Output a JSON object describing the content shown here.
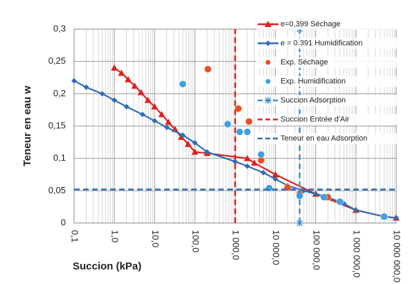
{
  "chart_data": {
    "type": "line",
    "x_label": "Succion (kPa)",
    "y_label": "Teneur en eau w",
    "xscale": "log",
    "grid": true,
    "xlim": [
      0.1,
      10000000
    ],
    "xticks": [
      {
        "value": 0.1,
        "label": "0,1"
      },
      {
        "value": 1,
        "label": "1,0"
      },
      {
        "value": 10,
        "label": "10,0"
      },
      {
        "value": 100,
        "label": "100,0"
      },
      {
        "value": 1000,
        "label": "1 000,0"
      },
      {
        "value": 10000,
        "label": "10 000,0"
      },
      {
        "value": 100000,
        "label": "100 000,0"
      },
      {
        "value": 1000000,
        "label": "1 000 000,0"
      },
      {
        "value": 10000000,
        "label": "10 000 000,0"
      }
    ],
    "ylim": [
      0,
      0.3
    ],
    "yticks": [
      0,
      {
        "value": 0.05,
        "label": "0,05"
      },
      {
        "value": 0.1,
        "label": "0,1"
      },
      {
        "value": 0.15,
        "label": "0,15"
      },
      {
        "value": 0.2,
        "label": "0,2"
      },
      {
        "value": 0.25,
        "label": "0,25"
      },
      {
        "value": 0.3,
        "label": "0,3"
      }
    ],
    "legend": "top-right",
    "series": [
      {
        "name": "e=0,399 Séchage",
        "color": "#e02020",
        "marker": "triangle",
        "line": "solid",
        "x": [
          1,
          1.5,
          2.2,
          3.2,
          4.6,
          6.8,
          10,
          15,
          22,
          32,
          46,
          68,
          100,
          200,
          2000,
          3000,
          10000,
          100000,
          1000000,
          5000000,
          10000000
        ],
        "values": [
          0.24,
          0.232,
          0.222,
          0.212,
          0.202,
          0.19,
          0.18,
          0.168,
          0.156,
          0.145,
          0.133,
          0.122,
          0.11,
          0.108,
          0.1,
          0.093,
          0.075,
          0.045,
          0.02,
          0.01,
          0.008
        ]
      },
      {
        "name": "e = 0.391 Humidification",
        "color": "#2e6db4",
        "marker": "diamond",
        "line": "solid",
        "x": [
          0.1,
          0.2,
          0.5,
          1,
          2,
          5,
          10,
          20,
          50,
          100,
          200,
          1000,
          2000,
          5000,
          10000,
          20000,
          50000,
          100000,
          200000,
          500000,
          1000000,
          5000000,
          10000000
        ],
        "values": [
          0.22,
          0.21,
          0.2,
          0.19,
          0.18,
          0.168,
          0.158,
          0.148,
          0.136,
          0.124,
          0.11,
          0.095,
          0.088,
          0.078,
          0.068,
          0.058,
          0.05,
          0.045,
          0.04,
          0.03,
          0.02,
          0.01,
          0.008
        ]
      },
      {
        "name": "Exp. Séchage",
        "color": "#e8501e",
        "marker": "circle",
        "line": "none",
        "x": [
          210,
          1200,
          2200,
          4400,
          20000,
          40000,
          200000,
          5000000
        ],
        "values": [
          0.238,
          0.177,
          0.157,
          0.097,
          0.055,
          0.045,
          0.04,
          0.01
        ]
      },
      {
        "name": "Exp. Humidification",
        "color": "#3fa0e0",
        "marker": "circle",
        "line": "none",
        "x": [
          50,
          650,
          1300,
          2000,
          4400,
          7000,
          40000,
          160000,
          400000,
          5000000
        ],
        "values": [
          0.215,
          0.153,
          0.141,
          0.141,
          0.106,
          0.054,
          0.042,
          0.04,
          0.033,
          0.01
        ]
      },
      {
        "name": "Succion Adsorption",
        "color": "#3c8fd0",
        "marker": "star",
        "line": "dashed",
        "x": [
          40000,
          40000
        ],
        "values": [
          0,
          0.3
        ]
      },
      {
        "name": "Succion Entrée d'Air",
        "color": "#e02020",
        "marker": "none",
        "line": "dashed",
        "x": [
          1000,
          1000
        ],
        "values": [
          0,
          0.3
        ]
      },
      {
        "name": "Teneur en eau Adsorption",
        "color": "#2e6db4",
        "marker": "none",
        "line": "dashed",
        "x": [
          0.1,
          10000000
        ],
        "values": [
          0.052,
          0.052
        ]
      }
    ]
  }
}
